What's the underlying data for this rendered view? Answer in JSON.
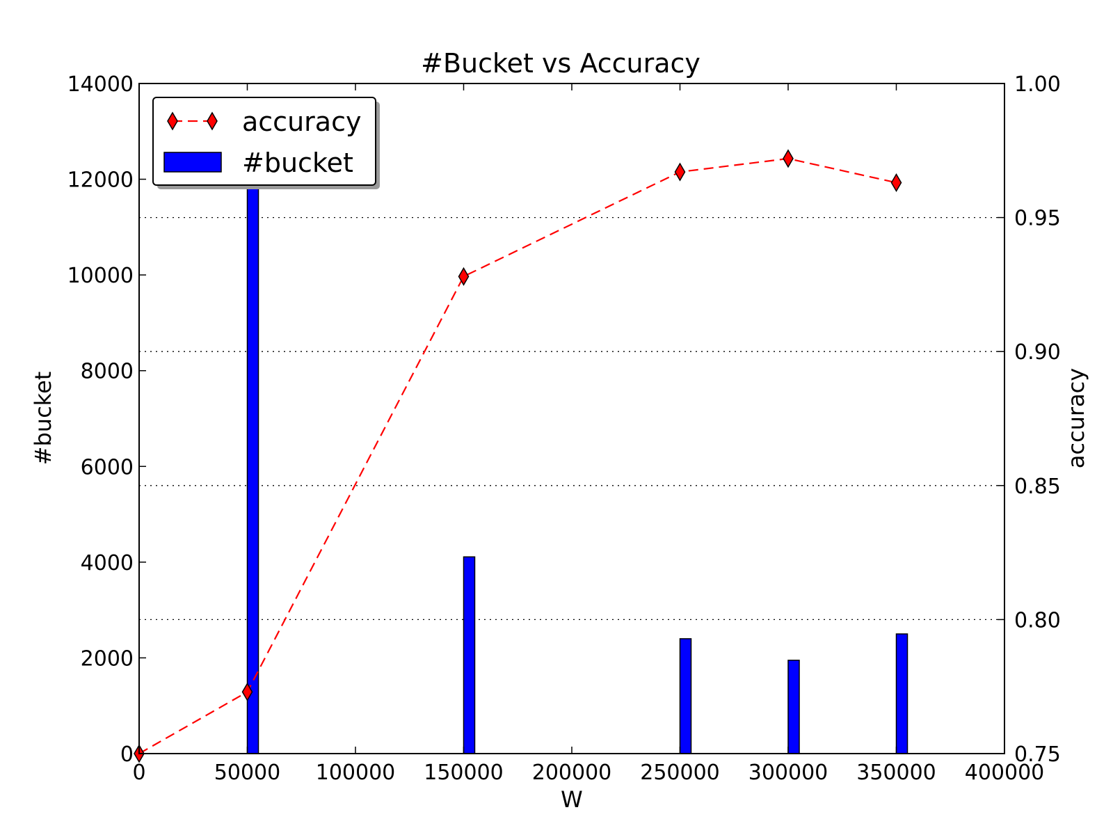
{
  "chart_data": {
    "type": "bar",
    "title": "#Bucket vs Accuracy",
    "xlabel": "W",
    "ylabel": "#bucket",
    "y2label": "accuracy",
    "xlim": [
      0,
      400000
    ],
    "ylim": [
      0,
      14000
    ],
    "y2lim": [
      0.75,
      1.0
    ],
    "x_ticks": [
      "0",
      "50000",
      "100000",
      "150000",
      "200000",
      "250000",
      "300000",
      "350000",
      "400000"
    ],
    "y_ticks": [
      "0",
      "2000",
      "4000",
      "6000",
      "8000",
      "10000",
      "12000",
      "14000"
    ],
    "y2_ticks": [
      "0.75",
      "0.80",
      "0.85",
      "0.90",
      "0.95",
      "1.00"
    ],
    "grid": "horizontal dotted (accuracy axis)",
    "legend_position": "upper-left",
    "series": [
      {
        "name": "accuracy",
        "type": "line",
        "axis": "right",
        "color": "#ff0000",
        "line_style": "dashed",
        "marker": "diamond",
        "x": [
          0,
          50000,
          150000,
          250000,
          300000,
          350000
        ],
        "values": [
          0.75,
          0.773,
          0.928,
          0.967,
          0.972,
          0.963
        ]
      },
      {
        "name": "#bucket",
        "type": "bar",
        "axis": "left",
        "color": "#0000ff",
        "x": [
          50000,
          150000,
          250000,
          300000,
          350000
        ],
        "values": [
          12000,
          4110,
          2400,
          1950,
          2500
        ]
      }
    ]
  }
}
